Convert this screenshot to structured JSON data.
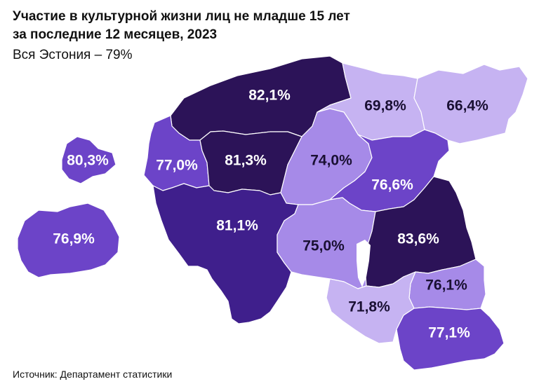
{
  "title_line1": "Участие в культурной жизни лиц не младше 15 лет",
  "title_line2": "за последние 12 месяцев, 2023",
  "subtitle": "Вся Эстония – 79%",
  "source": "Источник: Департамент статистики",
  "colors": {
    "lightest": "#c6b3f2",
    "light": "#a68ae8",
    "medium": "#6c44c8",
    "dark": "#3f1f8c",
    "darkest": "#2c1358",
    "label_dark": "#1a1033",
    "label_light": "#ffffff"
  },
  "regions": [
    {
      "id": "harju",
      "value": "82,1%",
      "shade": "darkest",
      "label_color": "label_light"
    },
    {
      "id": "ida-viru-west",
      "value": "69,8%",
      "shade": "lightest",
      "label_color": "label_dark"
    },
    {
      "id": "ida-viru-east",
      "value": "66,4%",
      "shade": "lightest",
      "label_color": "label_dark"
    },
    {
      "id": "hiiu",
      "value": "80,3%",
      "shade": "medium",
      "label_color": "label_light"
    },
    {
      "id": "laane",
      "value": "77,0%",
      "shade": "medium",
      "label_color": "label_light"
    },
    {
      "id": "rapla",
      "value": "81,3%",
      "shade": "darkest",
      "label_color": "label_light"
    },
    {
      "id": "jarva",
      "value": "74,0%",
      "shade": "light",
      "label_color": "label_dark"
    },
    {
      "id": "jogeva",
      "value": "76,6%",
      "shade": "medium",
      "label_color": "label_light"
    },
    {
      "id": "saare",
      "value": "76,9%",
      "shade": "medium",
      "label_color": "label_light"
    },
    {
      "id": "parnu",
      "value": "81,1%",
      "shade": "dark",
      "label_color": "label_light"
    },
    {
      "id": "viljandi",
      "value": "75,0%",
      "shade": "light",
      "label_color": "label_dark"
    },
    {
      "id": "tartu",
      "value": "83,6%",
      "shade": "darkest",
      "label_color": "label_light"
    },
    {
      "id": "polva",
      "value": "76,1%",
      "shade": "light",
      "label_color": "label_dark"
    },
    {
      "id": "valga",
      "value": "71,8%",
      "shade": "lightest",
      "label_color": "label_dark"
    },
    {
      "id": "voru",
      "value": "77,1%",
      "shade": "medium",
      "label_color": "label_light"
    }
  ]
}
